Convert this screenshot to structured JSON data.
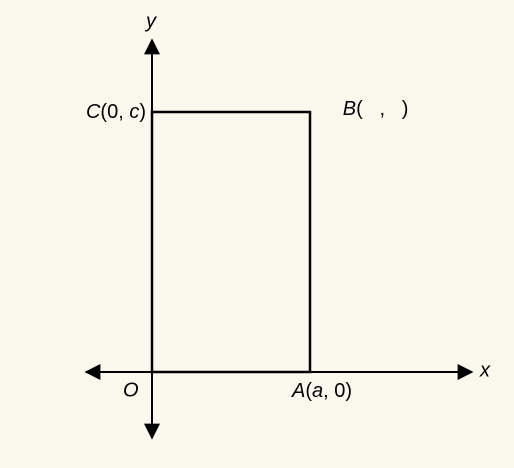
{
  "axes": {
    "x": "x",
    "y": "y"
  },
  "points": {
    "C": [
      "C",
      "(0, ",
      "c",
      ")"
    ],
    "B": [
      "B",
      "(   ,   )"
    ],
    "O": [
      "O"
    ],
    "A": [
      "A",
      "(",
      "a",
      ", 0)"
    ]
  }
}
